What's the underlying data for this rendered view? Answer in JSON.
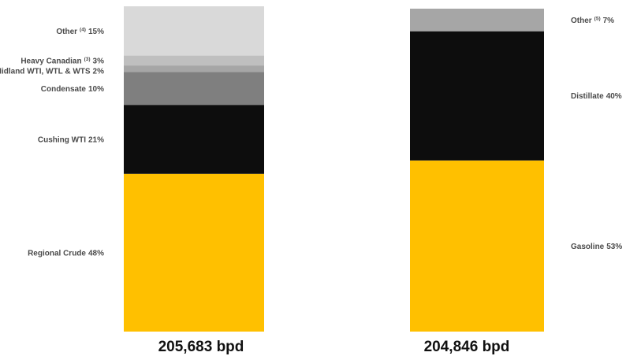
{
  "chart_data": [
    {
      "type": "bar",
      "stacked": true,
      "title": "",
      "total_label": "205,683 bpd",
      "unit": "%",
      "legend": "labels left of bar",
      "segments": [
        {
          "name": "Regional Crude",
          "sup": "",
          "pct_text": "48%",
          "value": 48,
          "color": "#ffc000"
        },
        {
          "name": "Cushing WTI",
          "sup": "",
          "pct_text": "21%",
          "value": 21,
          "color": "#0d0d0d"
        },
        {
          "name": "Condensate",
          "sup": "",
          "pct_text": "10%",
          "value": 10,
          "color": "#7f7f7f"
        },
        {
          "name": "Midland WTI, WTL & WTS",
          "sup": "",
          "pct_text": "2%",
          "value": 2,
          "color": "#a6a6a6"
        },
        {
          "name": "Heavy Canadian",
          "sup": "(3)",
          "pct_text": "3%",
          "value": 3,
          "color": "#bfbfbf"
        },
        {
          "name": "Other",
          "sup": "(4)",
          "pct_text": "15%",
          "value": 15,
          "color": "#d9d9d9"
        }
      ]
    },
    {
      "type": "bar",
      "stacked": true,
      "title": "",
      "total_label": "204,846 bpd",
      "unit": "%",
      "legend": "labels right of bar",
      "segments": [
        {
          "name": "Gasoline",
          "sup": "",
          "pct_text": "53%",
          "value": 53,
          "color": "#ffc000"
        },
        {
          "name": "Distillate",
          "sup": "",
          "pct_text": "40%",
          "value": 40,
          "color": "#0d0d0d"
        },
        {
          "name": "Other",
          "sup": "(5)",
          "pct_text": "7%",
          "value": 7,
          "color": "#a6a6a6"
        }
      ]
    }
  ]
}
